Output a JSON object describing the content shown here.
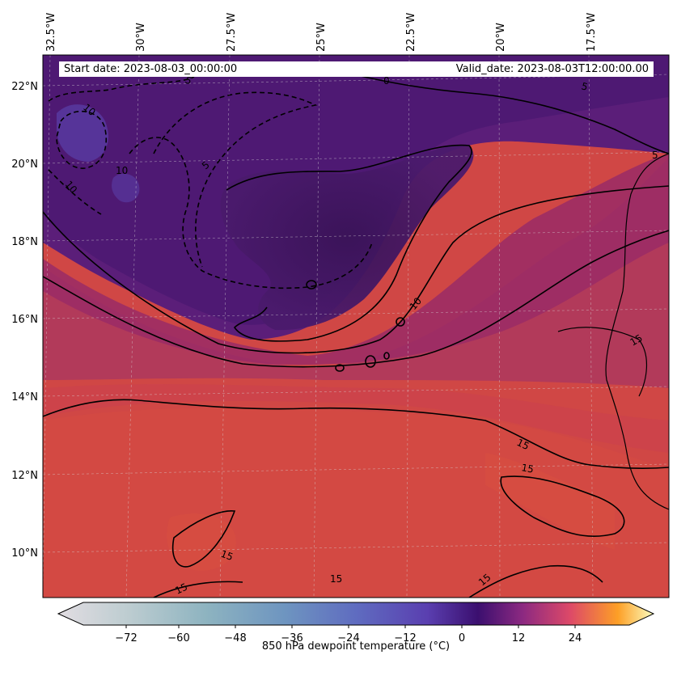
{
  "info": {
    "start_date": "Start date: 2023-08-03_00:00:00",
    "valid_date": "Valid_date: 2023-08-03T12:00:00.00"
  },
  "lon_labels": [
    "32.5°W",
    "30°W",
    "27.5°W",
    "25°W",
    "22.5°W",
    "20°W",
    "17.5°W"
  ],
  "lat_labels": [
    "22°N",
    "20°N",
    "18°N",
    "16°N",
    "14°N",
    "12°N",
    "10°N"
  ],
  "contour_labels": [
    "5",
    "10",
    "5",
    "10",
    "10",
    "0",
    "5",
    "5",
    "10",
    "15",
    "15",
    "15",
    "15",
    "15",
    "15",
    "15"
  ],
  "colorbar": {
    "label": "850 hPa dewpoint temperature ($^\\circ$C)",
    "display_label": "850 hPa dewpoint temperature (°C)",
    "ticks": [
      "−72",
      "−60",
      "−48",
      "−36",
      "−24",
      "−12",
      "0",
      "12",
      "24"
    ],
    "colors": [
      "#e2dde2",
      "#bcccd0",
      "#8db3c0",
      "#6e95c0",
      "#5f6cc0",
      "#5a3fb0",
      "#3b0f6f",
      "#8c2981",
      "#dd4968",
      "#fd9f26",
      "#fcfdbf"
    ]
  },
  "map_colors": {
    "warm": "#d24846",
    "mid": "#a8335e",
    "cool": "#5b1e79",
    "dry": "#3e1560"
  }
}
